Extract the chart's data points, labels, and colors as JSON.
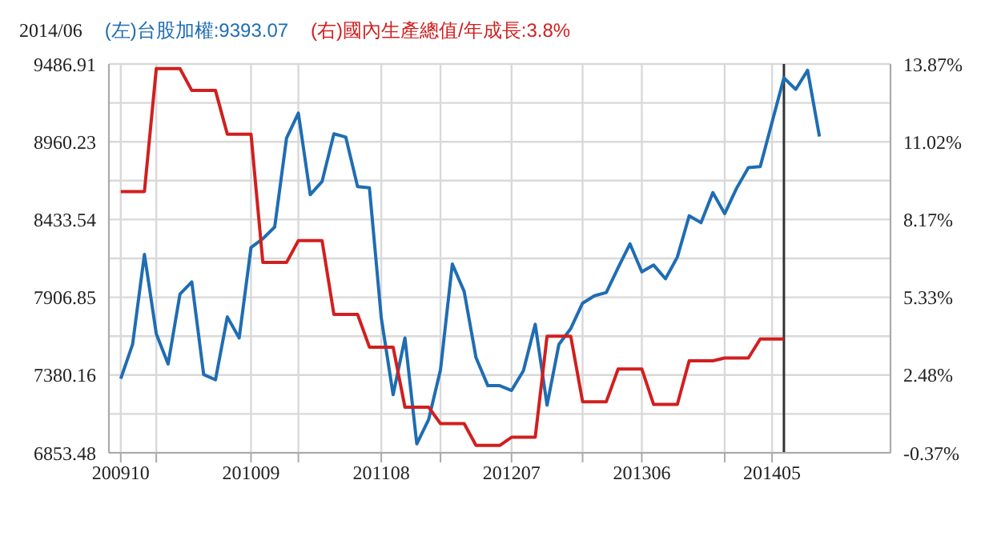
{
  "chart_data": {
    "type": "line",
    "title": "2014/06",
    "x": [
      "2009-10",
      "2009-11",
      "2009-12",
      "2010-01",
      "2010-02",
      "2010-03",
      "2010-04",
      "2010-05",
      "2010-06",
      "2010-07",
      "2010-08",
      "2010-09",
      "2010-10",
      "2010-11",
      "2010-12",
      "2011-01",
      "2011-02",
      "2011-03",
      "2011-04",
      "2011-05",
      "2011-06",
      "2011-07",
      "2011-08",
      "2011-09",
      "2011-10",
      "2011-11",
      "2011-12",
      "2012-01",
      "2012-02",
      "2012-03",
      "2012-04",
      "2012-05",
      "2012-06",
      "2012-07",
      "2012-08",
      "2012-09",
      "2012-10",
      "2012-11",
      "2012-12",
      "2013-01",
      "2013-02",
      "2013-03",
      "2013-04",
      "2013-05",
      "2013-06",
      "2013-07",
      "2013-08",
      "2013-09",
      "2013-10",
      "2013-11",
      "2013-12",
      "2014-01",
      "2014-02",
      "2014-03",
      "2014-04",
      "2014-05",
      "2014-06",
      "2014-07",
      "2014-08",
      "2014-09"
    ],
    "series": [
      {
        "name": "(左)台股加權:9393.07",
        "color": "#1f6db3",
        "values": [
          7355,
          7588,
          8197,
          7660,
          7455,
          7928,
          8011,
          7384,
          7348,
          7774,
          7631,
          8244,
          8304,
          8383,
          8985,
          9154,
          8602,
          8691,
          9014,
          8992,
          8656,
          8648,
          7767,
          7247,
          7631,
          6914,
          7079,
          7416,
          8132,
          7946,
          7498,
          7308,
          7308,
          7276,
          7409,
          7724,
          7176,
          7588,
          7695,
          7867,
          7917,
          7939,
          8107,
          8269,
          8079,
          8125,
          8032,
          8179,
          8459,
          8412,
          8616,
          8473,
          8645,
          8785,
          8792,
          9093,
          9393.07,
          9315,
          9444,
          8996
        ]
      },
      {
        "name": "(右)國內生產總值/年成長:3.8%",
        "color": "#d11f1f",
        "axis": "y2",
        "values": [
          9.2,
          9.2,
          9.2,
          13.7,
          13.7,
          13.7,
          12.9,
          12.9,
          12.9,
          11.3,
          11.3,
          11.3,
          6.6,
          6.6,
          6.6,
          7.4,
          7.4,
          7.4,
          4.7,
          4.7,
          4.7,
          3.5,
          3.5,
          3.5,
          1.3,
          1.3,
          1.3,
          0.7,
          0.7,
          0.7,
          -0.1,
          -0.1,
          -0.1,
          0.2,
          0.2,
          0.2,
          3.9,
          3.9,
          3.9,
          1.5,
          1.5,
          1.5,
          2.7,
          2.7,
          2.7,
          1.4,
          1.4,
          1.4,
          3.0,
          3.0,
          3.0,
          3.1,
          3.1,
          3.1,
          3.8,
          3.8,
          3.8,
          null,
          null,
          null
        ]
      }
    ],
    "xlim": [
      "2009-09",
      "2015-03"
    ],
    "xticks": [
      {
        "value": "2009-10",
        "label": "200910"
      },
      {
        "value": "2010-01",
        "label": null
      },
      {
        "value": "2010-09",
        "label": "201009"
      },
      {
        "value": "2011-01",
        "label": null
      },
      {
        "value": "2011-08",
        "label": "201108"
      },
      {
        "value": "2012-01",
        "label": null
      },
      {
        "value": "2012-07",
        "label": "201207"
      },
      {
        "value": "2013-01",
        "label": null
      },
      {
        "value": "2013-06",
        "label": "201306"
      },
      {
        "value": "2014-01",
        "label": null
      },
      {
        "value": "2014-05",
        "label": "201405"
      }
    ],
    "ylim": [
      6853.48,
      9486.91
    ],
    "yticks": [
      6853.48,
      {
        "value": 7116.82,
        "label": null
      },
      7380.16,
      {
        "value": 7643.5,
        "label": null
      },
      7906.85,
      {
        "value": 8170.2,
        "label": null
      },
      8433.54,
      {
        "value": 8696.89,
        "label": null
      },
      8960.23,
      {
        "value": 9223.57,
        "label": null
      },
      9486.91
    ],
    "y2lim": [
      -0.37,
      13.87
    ],
    "y2ticks": [
      {
        "value": -0.37,
        "label": "-0.37%"
      },
      {
        "value": 2.48,
        "label": "2.48%"
      },
      {
        "value": 5.33,
        "label": "5.33%"
      },
      {
        "value": 8.17,
        "label": "8.17%"
      },
      {
        "value": 11.02,
        "label": "11.02%"
      },
      {
        "value": 13.87,
        "label": "13.87%"
      }
    ],
    "ref_lines": [
      {
        "axis": "x",
        "value": "2014-06",
        "color": "#333333"
      }
    ],
    "grid": true,
    "legend": "top left",
    "marker": "none",
    "line_style": "solid"
  }
}
